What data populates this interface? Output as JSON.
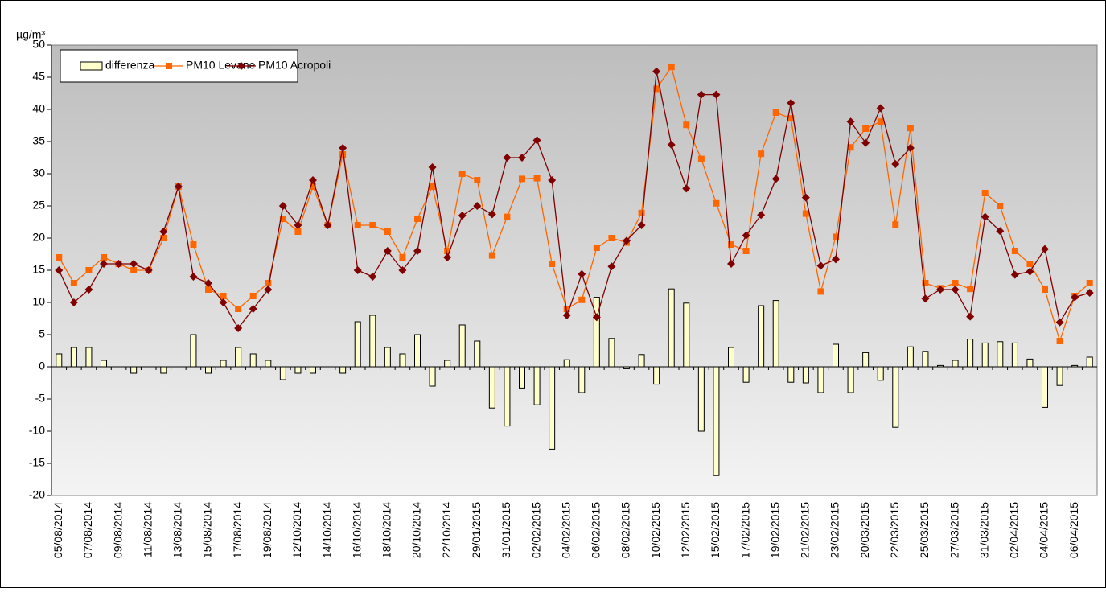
{
  "chart_data": {
    "type": "combo",
    "ylabel": "µg/m³",
    "categories": [
      "05/08/2014",
      null,
      "07/08/2014",
      null,
      "09/08/2014",
      null,
      "11/08/2014",
      null,
      "13/08/2014",
      null,
      "15/08/2014",
      null,
      "17/08/2014",
      null,
      "19/08/2014",
      null,
      "12/10/2014",
      null,
      "14/10/2014",
      null,
      "16/10/2014",
      null,
      "18/10/2014",
      null,
      "20/10/2014",
      null,
      "22/10/2014",
      null,
      "29/01/2015",
      null,
      "31/01/2015",
      null,
      "02/02/2015",
      null,
      "04/02/2015",
      null,
      "06/02/2015",
      null,
      "08/02/2015",
      null,
      "10/02/2015",
      null,
      "12/02/2015",
      null,
      "15/02/2015",
      null,
      "17/02/2015",
      null,
      "19/02/2015",
      null,
      "21/02/2015",
      null,
      "23/02/2015",
      null,
      "20/03/2015",
      null,
      "22/03/2015",
      null,
      "25/03/2015",
      null,
      "27/03/2015",
      null,
      "31/03/2015",
      null,
      "02/04/2015",
      null,
      "04/04/2015",
      null,
      "06/04/2015",
      null
    ],
    "series": [
      {
        "name": "differenza",
        "type": "bar",
        "color": "#ffffcc",
        "values": [
          2,
          3,
          3,
          1,
          0,
          -1,
          0,
          -1,
          0,
          5,
          -1,
          1,
          3,
          2,
          1,
          -2,
          -1,
          -1,
          0,
          -1,
          7,
          8,
          3,
          2,
          5,
          -3,
          1,
          6.5,
          4,
          -6.4,
          -9.2,
          -3.3,
          -5.9,
          -12.8,
          1.1,
          -4,
          10.8,
          4.4,
          -0.3,
          1.9,
          -2.7,
          12.1,
          9.9,
          -10,
          -16.9,
          3,
          -2.4,
          9.5,
          10.3,
          -2.4,
          -2.5,
          -4,
          3.5,
          -4,
          2.2,
          -2.1,
          -9.4,
          3.1,
          2.4,
          0.2,
          1,
          4.3,
          3.7,
          3.9,
          3.7,
          1.2,
          -6.3,
          -2.9,
          0.2,
          1.5
        ]
      },
      {
        "name": "PM10 Levane",
        "type": "line",
        "marker": "square",
        "color": "#ff6600",
        "values": [
          17,
          13,
          15,
          17,
          16,
          15,
          15,
          20,
          28,
          19,
          12,
          11,
          9,
          11,
          13,
          23,
          21,
          28,
          22,
          33,
          22,
          22,
          21,
          17,
          23,
          28,
          18,
          30,
          29,
          17.3,
          23.3,
          29.2,
          29.3,
          16,
          9,
          10.4,
          18.5,
          20,
          19.3,
          23.9,
          43.2,
          46.6,
          37.6,
          32.3,
          25.4,
          19,
          18,
          33.1,
          39.5,
          38.6,
          23.8,
          11.7,
          20.2,
          34.1,
          37,
          38.1,
          22.1,
          37.1,
          13,
          12.2,
          13,
          12.1,
          27,
          25,
          18,
          16,
          12,
          4,
          11,
          13
        ]
      },
      {
        "name": "PM10 Acropoli",
        "type": "line",
        "marker": "diamond",
        "color": "#800000",
        "values": [
          15,
          10,
          12,
          16,
          16,
          16,
          15,
          21,
          28,
          14,
          13,
          10,
          6,
          9,
          12,
          25,
          22,
          29,
          22,
          34,
          15,
          14,
          18,
          15,
          18,
          31,
          17,
          23.5,
          25,
          23.7,
          32.5,
          32.5,
          35.2,
          29,
          8,
          14.4,
          7.7,
          15.6,
          19.6,
          22,
          45.9,
          34.5,
          27.7,
          42.3,
          42.3,
          16,
          20.4,
          23.6,
          29.2,
          41,
          26.3,
          15.7,
          16.7,
          38.1,
          34.8,
          40.2,
          31.5,
          34,
          10.6,
          12,
          12,
          7.8,
          23.3,
          21.1,
          14.3,
          14.8,
          18.3,
          6.9,
          10.8,
          11.5
        ]
      }
    ],
    "ylim": [
      -20,
      50
    ],
    "yticks": [
      -20,
      -15,
      -10,
      -5,
      0,
      5,
      10,
      15,
      20,
      25,
      30,
      35,
      40,
      45,
      50
    ],
    "grid": false,
    "legend_position": "top-left"
  }
}
